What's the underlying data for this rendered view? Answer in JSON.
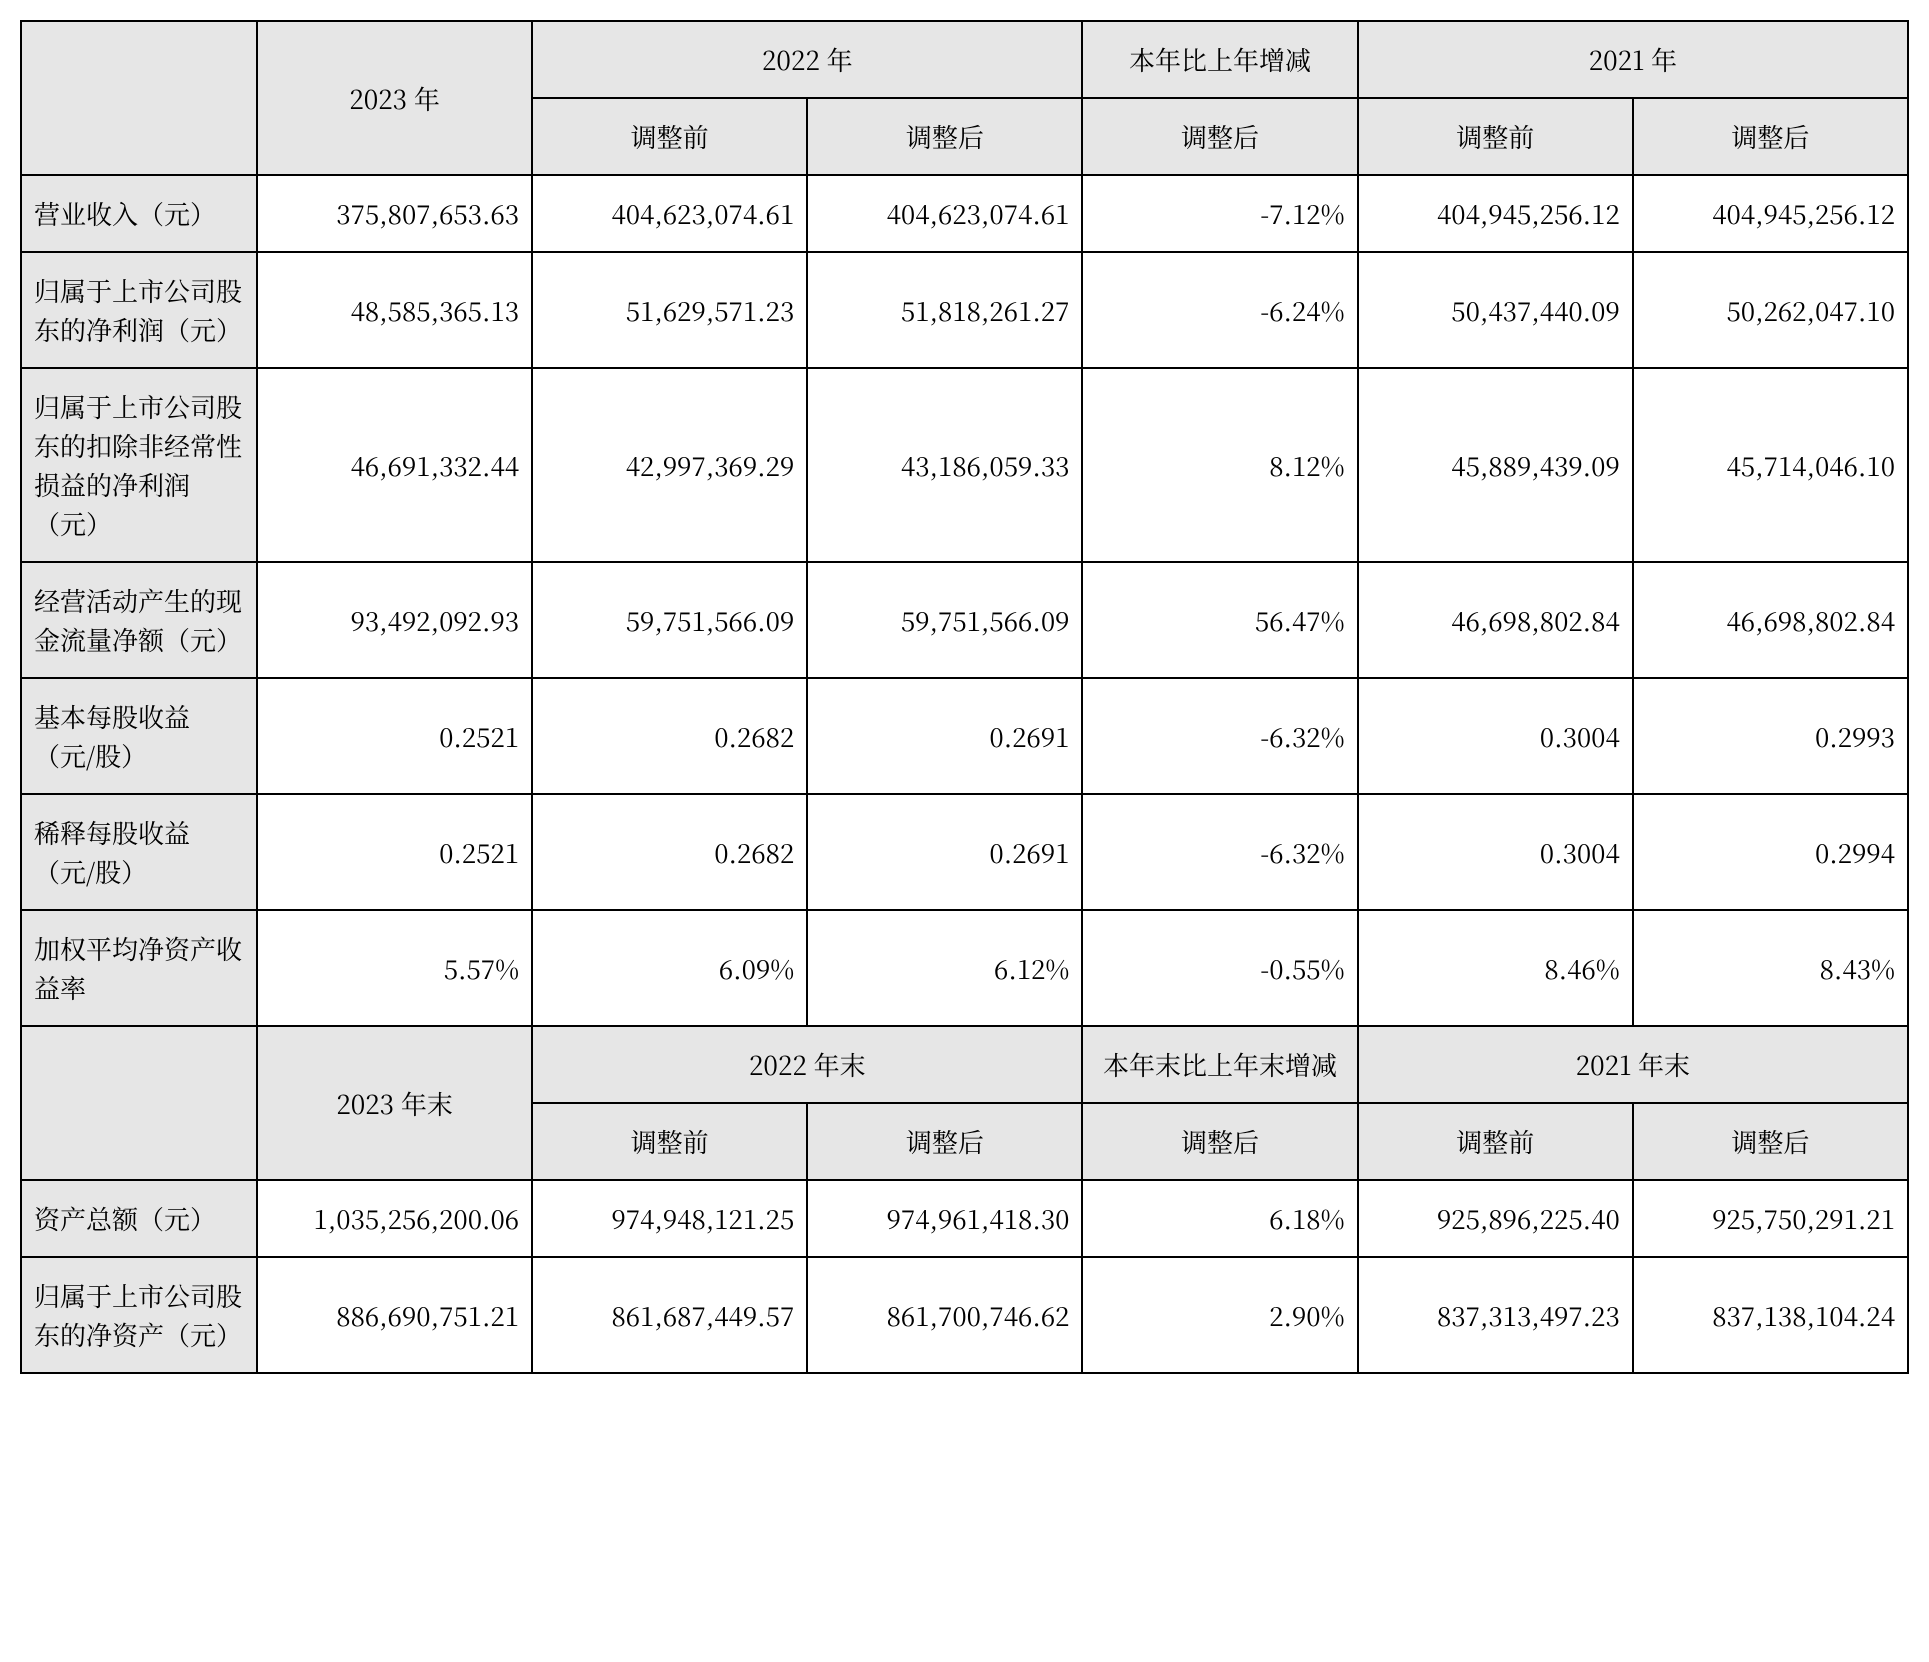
{
  "colors": {
    "header_bg": "#e6e6e6",
    "border": "#000000",
    "text": "#000000",
    "body_bg": "#ffffff"
  },
  "typography": {
    "font_family": "SimSun / 宋体",
    "cell_fontsize_pt": 20,
    "line_height": 1.5
  },
  "header1": {
    "blank": "",
    "y2023": "2023 年",
    "y2022": "2022 年",
    "yoy": "本年比上年增减",
    "y2021": "2021 年",
    "before": "调整前",
    "after": "调整后"
  },
  "rows1": [
    {
      "label": "营业收入（元）",
      "y2023": "375,807,653.63",
      "y2022_before": "404,623,074.61",
      "y2022_after": "404,623,074.61",
      "yoy": "-7.12%",
      "y2021_before": "404,945,256.12",
      "y2021_after": "404,945,256.12"
    },
    {
      "label": "归属于上市公司股东的净利润（元）",
      "y2023": "48,585,365.13",
      "y2022_before": "51,629,571.23",
      "y2022_after": "51,818,261.27",
      "yoy": "-6.24%",
      "y2021_before": "50,437,440.09",
      "y2021_after": "50,262,047.10"
    },
    {
      "label": "归属于上市公司股东的扣除非经常性损益的净利润（元）",
      "y2023": "46,691,332.44",
      "y2022_before": "42,997,369.29",
      "y2022_after": "43,186,059.33",
      "yoy": "8.12%",
      "y2021_before": "45,889,439.09",
      "y2021_after": "45,714,046.10"
    },
    {
      "label": "经营活动产生的现金流量净额（元）",
      "y2023": "93,492,092.93",
      "y2022_before": "59,751,566.09",
      "y2022_after": "59,751,566.09",
      "yoy": "56.47%",
      "y2021_before": "46,698,802.84",
      "y2021_after": "46,698,802.84"
    },
    {
      "label": "基本每股收益（元/股）",
      "y2023": "0.2521",
      "y2022_before": "0.2682",
      "y2022_after": "0.2691",
      "yoy": "-6.32%",
      "y2021_before": "0.3004",
      "y2021_after": "0.2993"
    },
    {
      "label": "稀释每股收益（元/股）",
      "y2023": "0.2521",
      "y2022_before": "0.2682",
      "y2022_after": "0.2691",
      "yoy": "-6.32%",
      "y2021_before": "0.3004",
      "y2021_after": "0.2994"
    },
    {
      "label": "加权平均净资产收益率",
      "y2023": "5.57%",
      "y2022_before": "6.09%",
      "y2022_after": "6.12%",
      "yoy": "-0.55%",
      "y2021_before": "8.46%",
      "y2021_after": "8.43%"
    }
  ],
  "header2": {
    "blank": "",
    "y2023": "2023 年末",
    "y2022": "2022 年末",
    "yoy": "本年末比上年末增减",
    "y2021": "2021 年末",
    "before": "调整前",
    "after": "调整后"
  },
  "rows2": [
    {
      "label": "资产总额（元）",
      "y2023": "1,035,256,200.06",
      "y2022_before": "974,948,121.25",
      "y2022_after": "974,961,418.30",
      "yoy": "6.18%",
      "y2021_before": "925,896,225.40",
      "y2021_after": "925,750,291.21"
    },
    {
      "label": "归属于上市公司股东的净资产（元）",
      "y2023": "886,690,751.21",
      "y2022_before": "861,687,449.57",
      "y2022_after": "861,700,746.62",
      "yoy": "2.90%",
      "y2021_before": "837,313,497.23",
      "y2021_after": "837,138,104.24"
    }
  ]
}
